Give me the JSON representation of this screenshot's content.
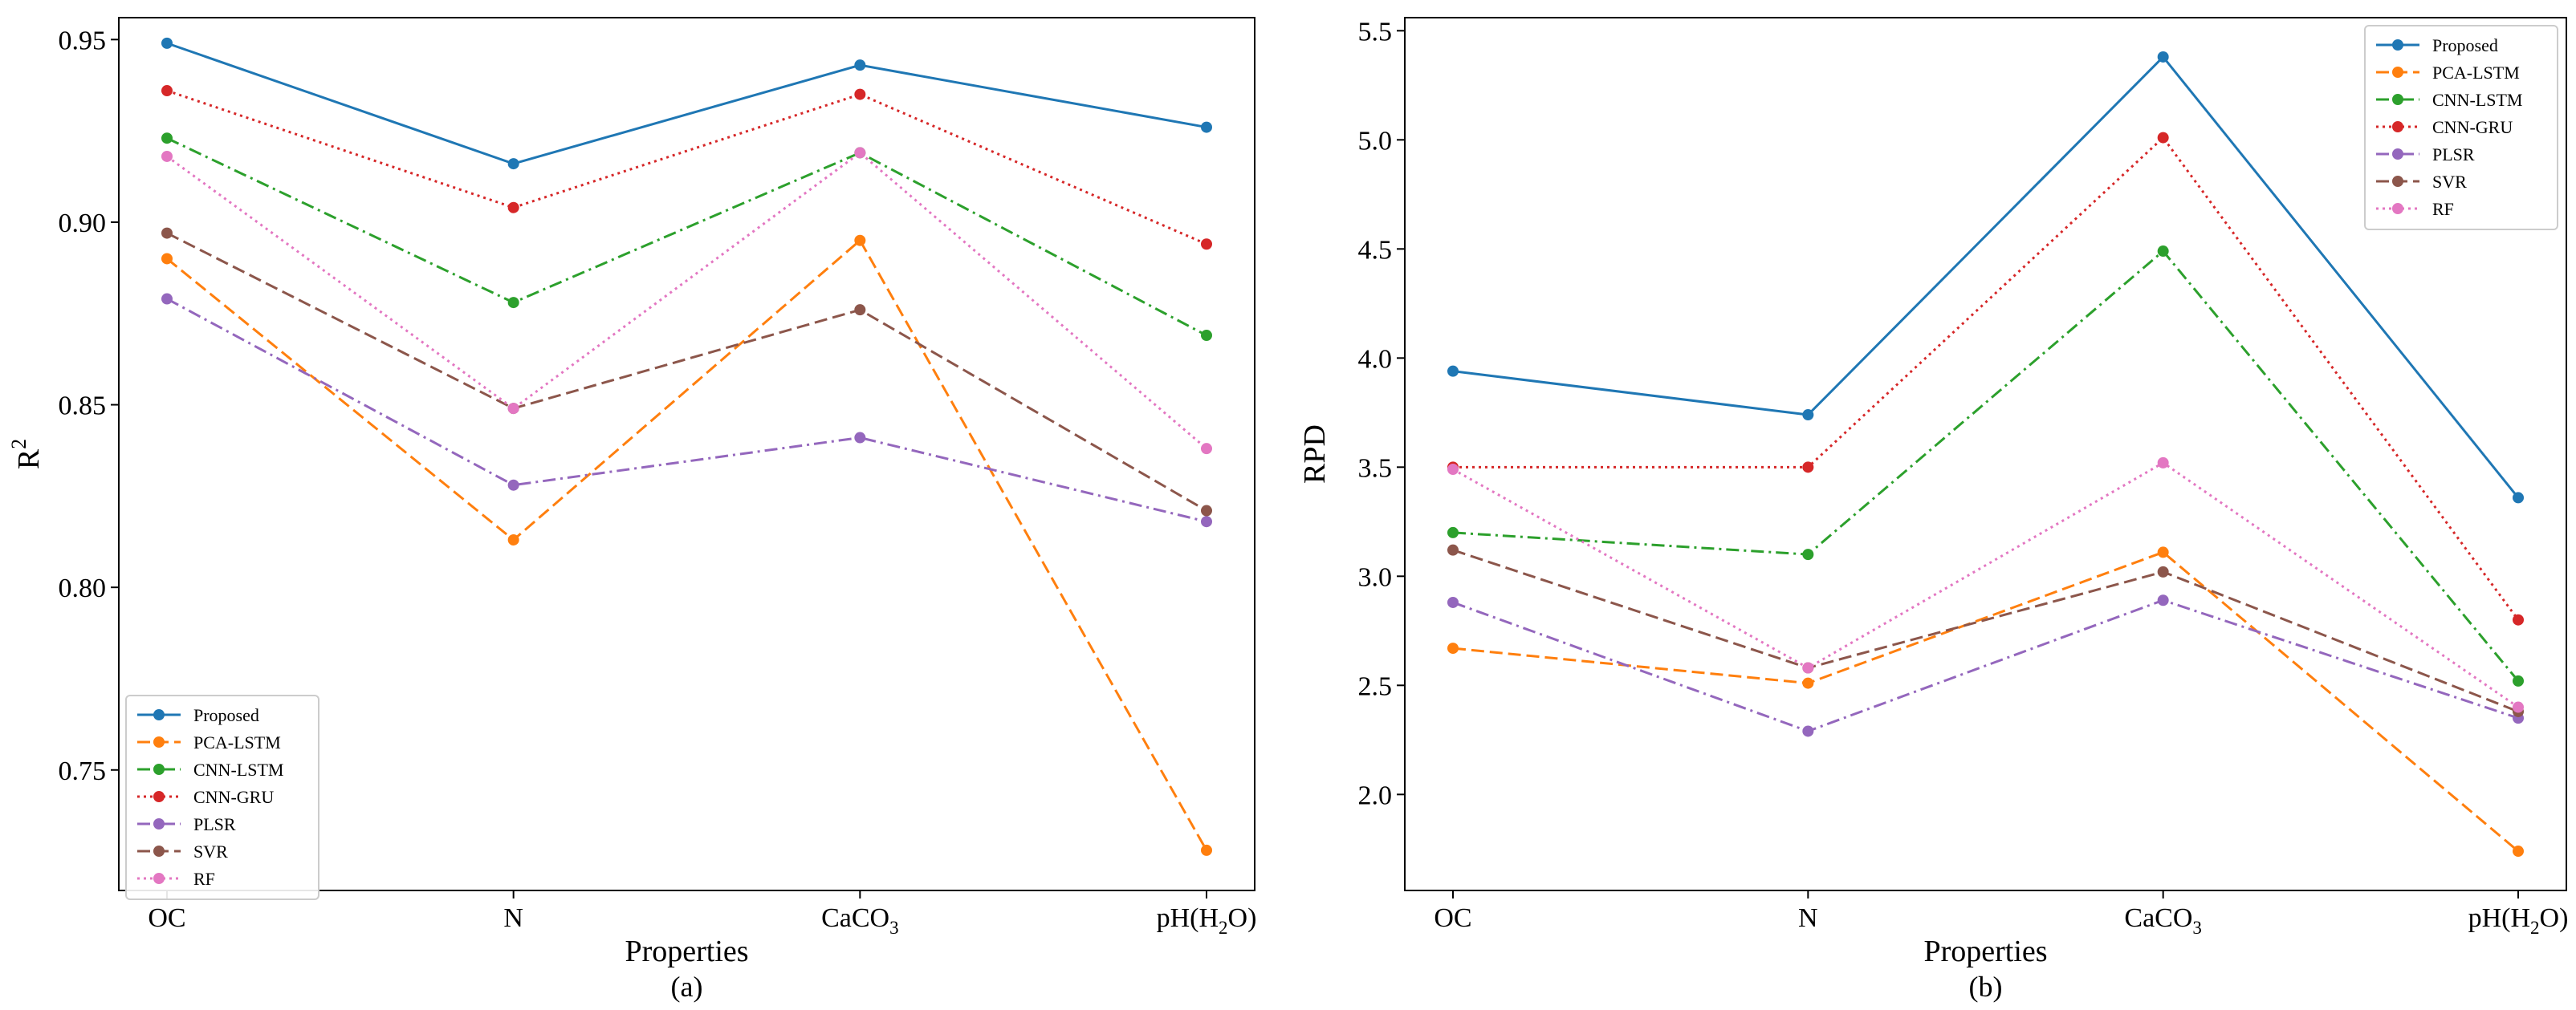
{
  "chart_data": [
    {
      "type": "line",
      "panel_label": "(a)",
      "xlabel": "Properties",
      "ylabel": "R",
      "ylabel_sup": "2",
      "categories": [
        {
          "base": "OC",
          "sub": "",
          "tail": ""
        },
        {
          "base": "N",
          "sub": "",
          "tail": ""
        },
        {
          "base": "CaCO",
          "sub": "3",
          "tail": ""
        },
        {
          "base": "pH(H",
          "sub": "2",
          "tail": "O)"
        }
      ],
      "ylim": [
        0.717,
        0.956
      ],
      "yticks": [
        0.75,
        0.8,
        0.85,
        0.9,
        0.95
      ],
      "ytick_labels": [
        "0.75",
        "0.80",
        "0.85",
        "0.90",
        "0.95"
      ],
      "legend_position": "lower-left",
      "series": [
        {
          "name": "Proposed",
          "color": "#1f77b4",
          "dash": "solid",
          "values": [
            0.949,
            0.916,
            0.943,
            0.926
          ]
        },
        {
          "name": "PCA-LSTM",
          "color": "#ff7f0e",
          "dash": "dashed",
          "values": [
            0.89,
            0.813,
            0.895,
            0.728
          ]
        },
        {
          "name": "CNN-LSTM",
          "color": "#2ca02c",
          "dash": "dashdot",
          "values": [
            0.923,
            0.878,
            0.919,
            0.869
          ]
        },
        {
          "name": "CNN-GRU",
          "color": "#d62728",
          "dash": "dotted",
          "values": [
            0.936,
            0.904,
            0.935,
            0.894
          ]
        },
        {
          "name": "PLSR",
          "color": "#9467bd",
          "dash": "dashdot",
          "values": [
            0.879,
            0.828,
            0.841,
            0.818
          ]
        },
        {
          "name": "SVR",
          "color": "#8c564b",
          "dash": "dashed",
          "values": [
            0.897,
            0.849,
            0.876,
            0.821
          ]
        },
        {
          "name": "RF",
          "color": "#e377c2",
          "dash": "dotted",
          "values": [
            0.918,
            0.849,
            0.919,
            0.838
          ]
        }
      ]
    },
    {
      "type": "line",
      "panel_label": "(b)",
      "xlabel": "Properties",
      "ylabel": "RPD",
      "ylabel_sup": "",
      "categories": [
        {
          "base": "OC",
          "sub": "",
          "tail": ""
        },
        {
          "base": "N",
          "sub": "",
          "tail": ""
        },
        {
          "base": "CaCO",
          "sub": "3",
          "tail": ""
        },
        {
          "base": "pH(H",
          "sub": "2",
          "tail": "O)"
        }
      ],
      "ylim": [
        1.56,
        5.56
      ],
      "yticks": [
        2.0,
        2.5,
        3.0,
        3.5,
        4.0,
        4.5,
        5.0,
        5.5
      ],
      "ytick_labels": [
        "2.0",
        "2.5",
        "3.0",
        "3.5",
        "4.0",
        "4.5",
        "5.0",
        "5.5"
      ],
      "legend_position": "top-right",
      "series": [
        {
          "name": "Proposed",
          "color": "#1f77b4",
          "dash": "solid",
          "values": [
            3.94,
            3.74,
            5.38,
            3.36
          ]
        },
        {
          "name": "PCA-LSTM",
          "color": "#ff7f0e",
          "dash": "dashed",
          "values": [
            2.67,
            2.51,
            3.11,
            1.74
          ]
        },
        {
          "name": "CNN-LSTM",
          "color": "#2ca02c",
          "dash": "dashdot",
          "values": [
            3.2,
            3.1,
            4.49,
            2.52
          ]
        },
        {
          "name": "CNN-GRU",
          "color": "#d62728",
          "dash": "dotted",
          "values": [
            3.5,
            3.5,
            5.01,
            2.8
          ]
        },
        {
          "name": "PLSR",
          "color": "#9467bd",
          "dash": "dashdot",
          "values": [
            2.88,
            2.29,
            2.89,
            2.35
          ]
        },
        {
          "name": "SVR",
          "color": "#8c564b",
          "dash": "dashed",
          "values": [
            3.12,
            2.58,
            3.02,
            2.38
          ]
        },
        {
          "name": "RF",
          "color": "#e377c2",
          "dash": "dotted",
          "values": [
            3.49,
            2.58,
            3.52,
            2.4
          ]
        }
      ]
    }
  ]
}
